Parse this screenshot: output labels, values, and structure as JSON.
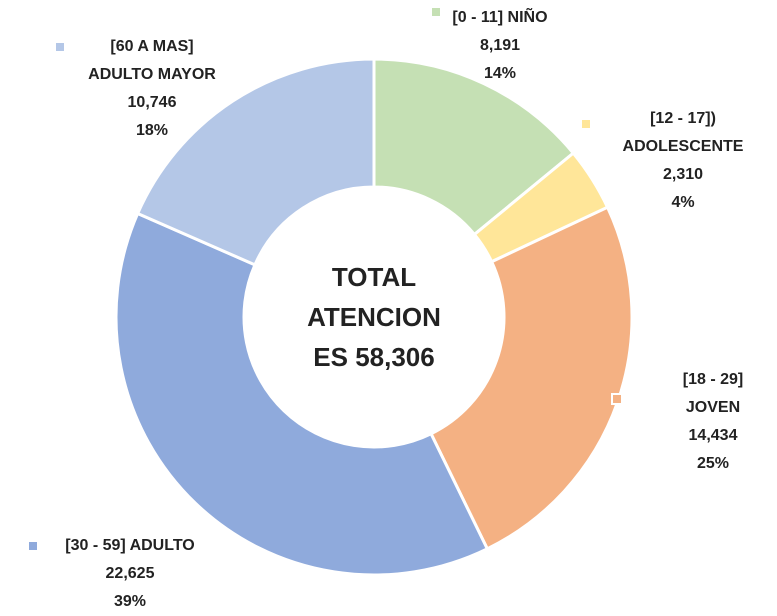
{
  "chart_data": {
    "type": "donut",
    "center_text": "TOTAL ATENCION ES 58,306",
    "categories": [
      "[0 - 11] NIÑO",
      "[12 - 17]) ADOLESCENTE",
      "[18 - 29] JOVEN",
      "[30 - 59] ADULTO",
      "[60 A MAS] ADULTO MAYOR"
    ],
    "values": [
      8191,
      2310,
      14434,
      22625,
      10746
    ],
    "value_labels": [
      "8,191",
      "2,310",
      "14,434",
      "22,625",
      "10,746"
    ],
    "percentages": [
      14,
      4,
      25,
      39,
      18
    ],
    "percentage_labels": [
      "14%",
      "4%",
      "25%",
      "39%",
      "18%"
    ],
    "colors": [
      "#c5e0b4",
      "#ffe699",
      "#f4b183",
      "#8faadc",
      "#b4c7e7"
    ]
  }
}
